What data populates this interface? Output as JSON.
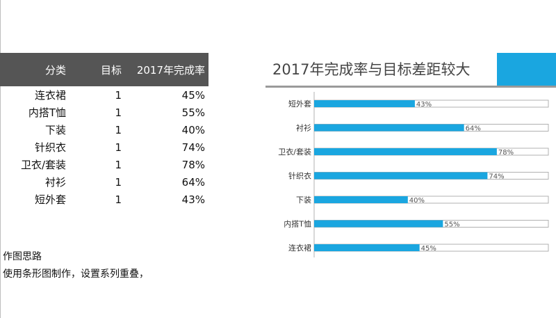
{
  "table": {
    "headers": [
      "分类",
      "目标",
      "2017年完成率"
    ],
    "rows": [
      {
        "category": "连衣裙",
        "target": "1",
        "rate": "45%"
      },
      {
        "category": "内搭T恤",
        "target": "1",
        "rate": "55%"
      },
      {
        "category": "下装",
        "target": "1",
        "rate": "40%"
      },
      {
        "category": "针织衣",
        "target": "1",
        "rate": "74%"
      },
      {
        "category": "卫衣/套装",
        "target": "1",
        "rate": "78%"
      },
      {
        "category": "衬衫",
        "target": "1",
        "rate": "64%"
      },
      {
        "category": "短外套",
        "target": "1",
        "rate": "43%"
      }
    ]
  },
  "notes": {
    "heading": "作图思路",
    "text": "使用条形图制作，设置系列重叠，"
  },
  "chart_data": {
    "type": "bar",
    "orientation": "horizontal",
    "title": "2017年完成率与目标差距较大",
    "categories": [
      "短外套",
      "衬衫",
      "卫衣/套装",
      "针织衣",
      "下装",
      "内搭T恤",
      "连衣裙"
    ],
    "series": [
      {
        "values": [
          1,
          1,
          1,
          1,
          1,
          1,
          1
        ],
        "color": "#ffffff",
        "outline": "#b0b0b0"
      },
      {
        "values": [
          0.43,
          0.64,
          0.78,
          0.74,
          0.4,
          0.55,
          0.45
        ],
        "color": "#1aa6e0"
      }
    ],
    "labels": [
      "43%",
      "64%",
      "78%",
      "74%",
      "40%",
      "55%",
      "45%"
    ],
    "xlim": [
      0,
      1
    ],
    "overlap": true,
    "grid": false,
    "legend": "none"
  }
}
